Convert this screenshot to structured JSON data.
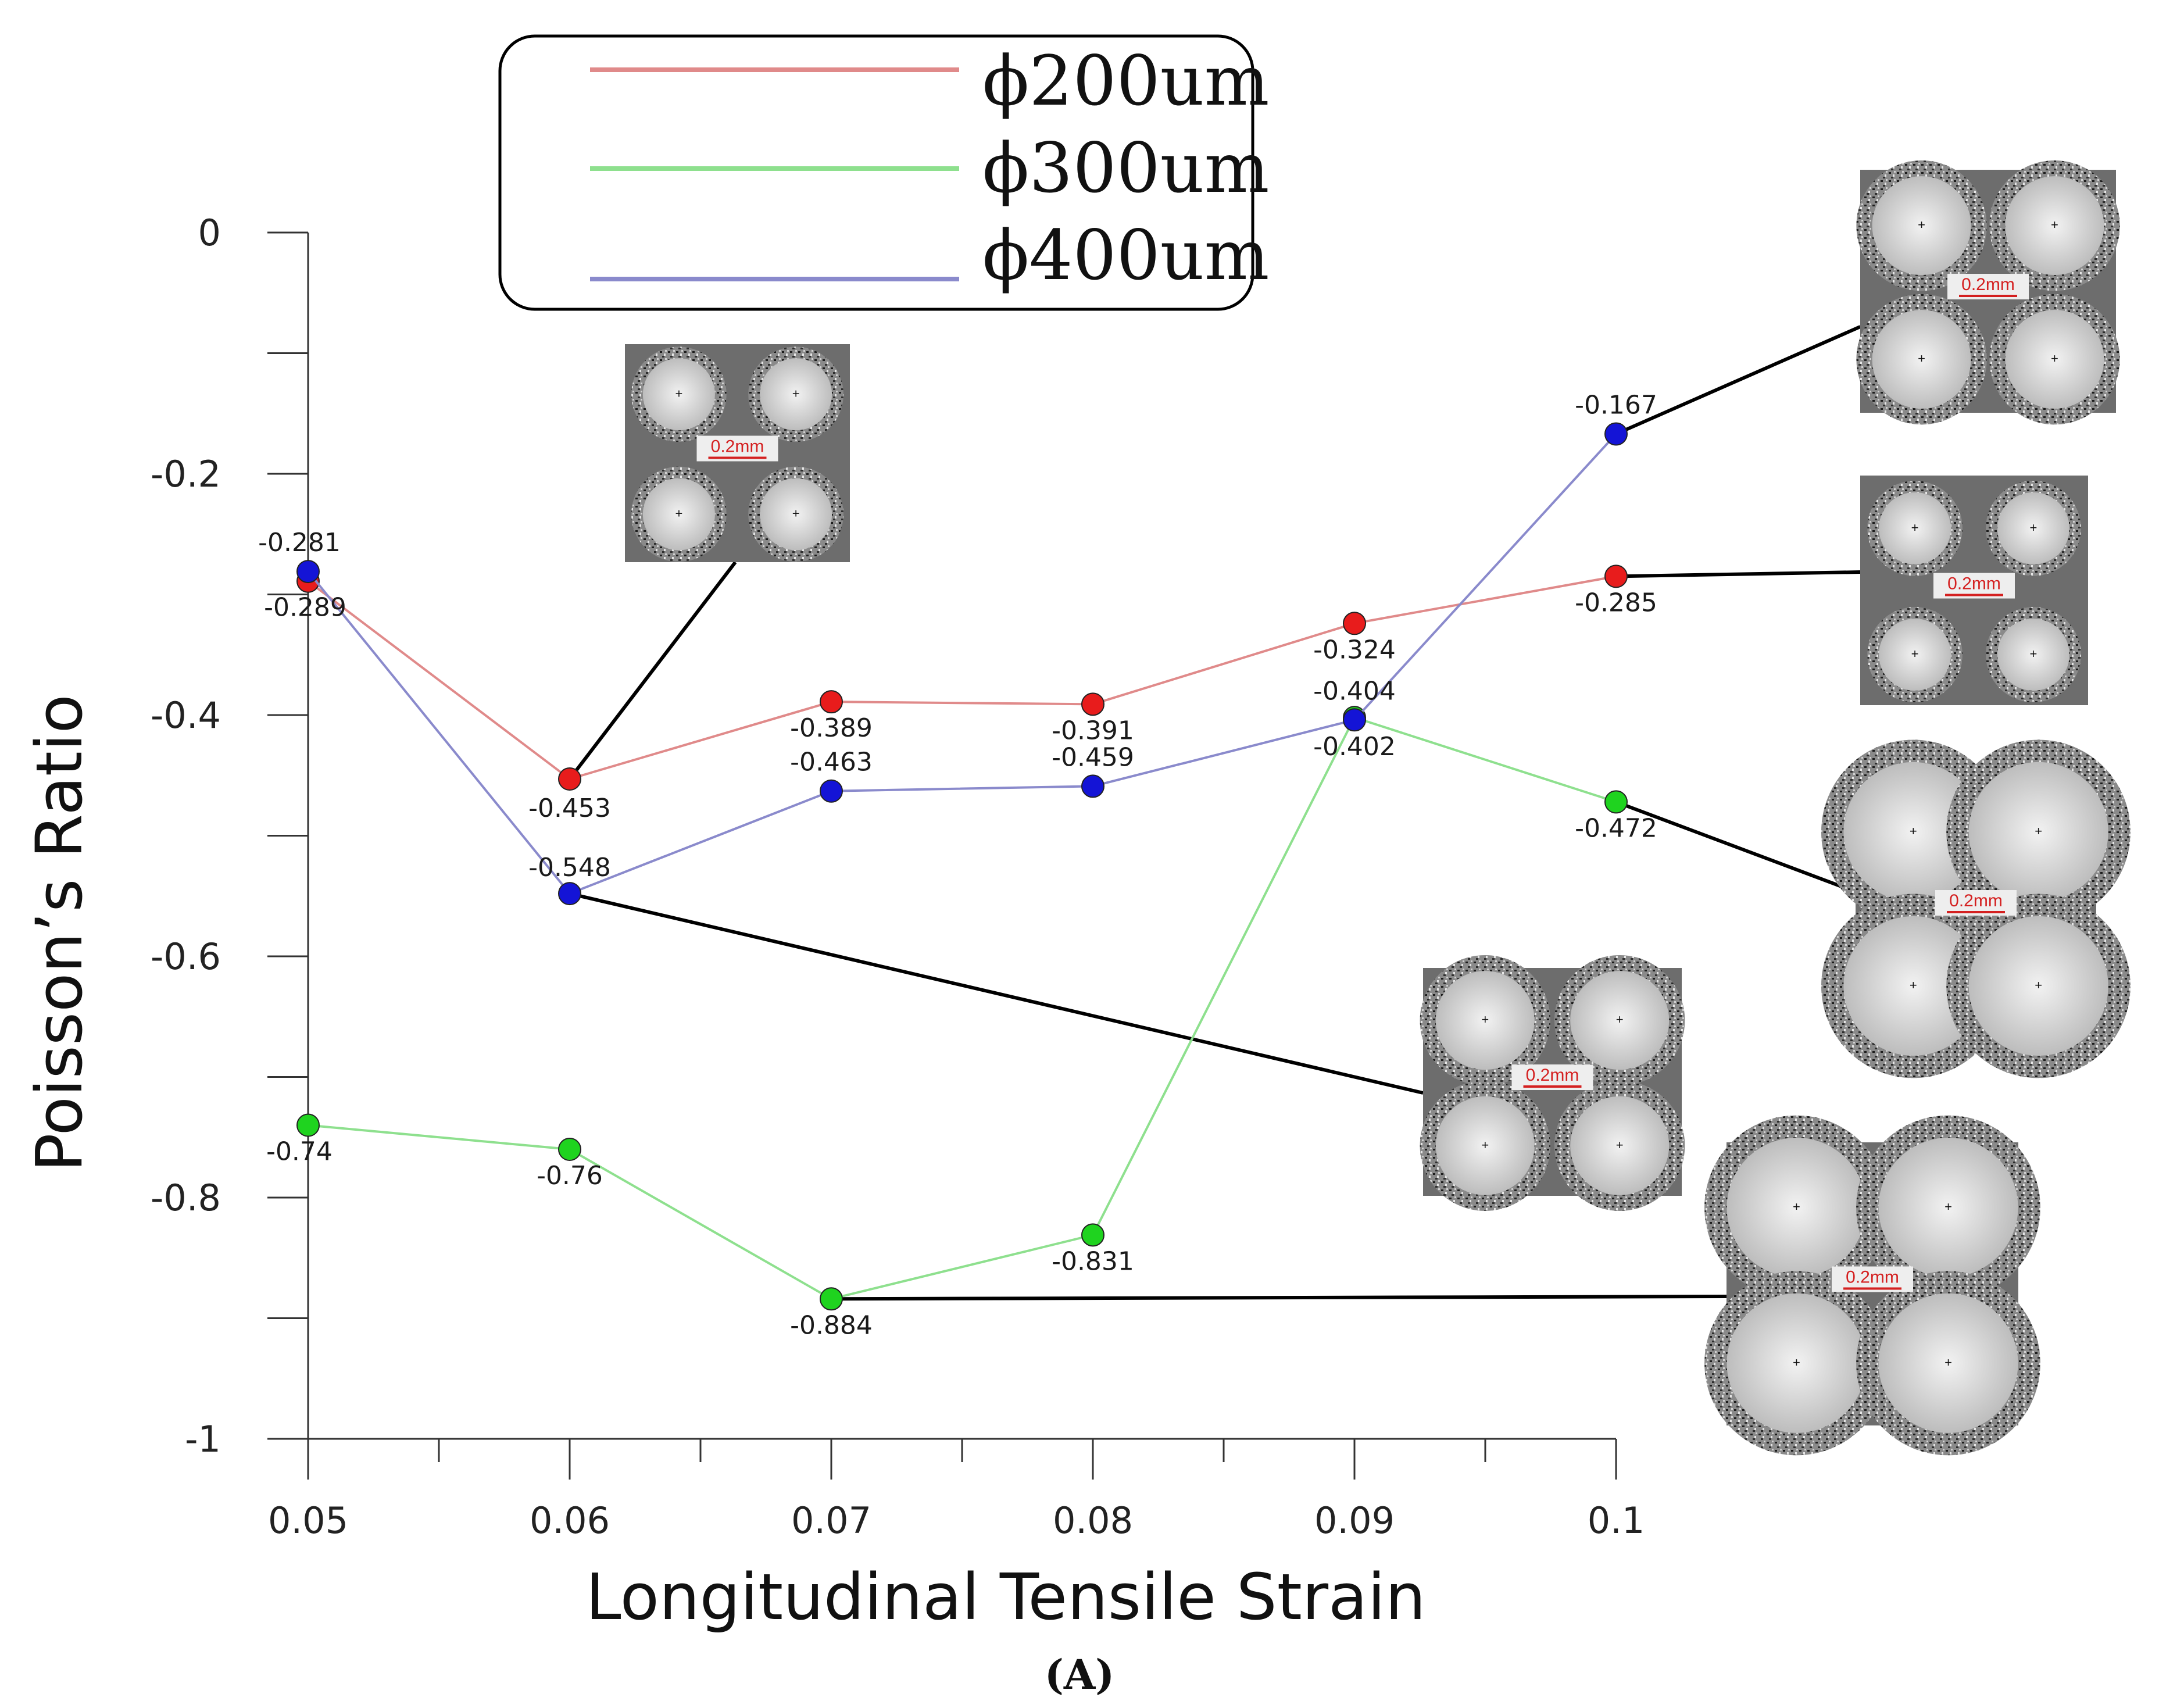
{
  "chart_data": {
    "type": "line",
    "title": "",
    "xlabel": "Longitudinal Tensile Strain",
    "ylabel": "Poisson’s Ratio",
    "panel_label": "(A)",
    "x": [
      0.05,
      0.06,
      0.07,
      0.08,
      0.09,
      0.1
    ],
    "x_tick_labels": [
      "0.05",
      "0.06",
      "0.07",
      "0.08",
      "0.09",
      "0.1"
    ],
    "y_tick_labels": [
      "0",
      "-0.2",
      "-0.4",
      "-0.6",
      "-0.8",
      "-1"
    ],
    "xlim": [
      0.05,
      0.1
    ],
    "ylim": [
      -1,
      0
    ],
    "grid": false,
    "legend_position": "top-center",
    "series": [
      {
        "name": "ϕ200um",
        "line_color": "#e08a8a",
        "marker_color": "#e81c1c",
        "values": [
          -0.289,
          -0.453,
          -0.389,
          -0.391,
          -0.324,
          -0.285
        ],
        "labels": [
          "-0.289",
          "-0.453",
          "-0.389",
          "-0.391",
          "-0.324",
          "-0.285"
        ]
      },
      {
        "name": "ϕ300um",
        "line_color": "#8ee08e",
        "marker_color": "#1fd31f",
        "values": [
          -0.74,
          -0.76,
          -0.884,
          -0.831,
          -0.402,
          -0.472
        ],
        "labels": [
          "-0.74",
          "-0.76",
          "-0.884",
          "-0.831",
          "-0.402",
          "-0.472"
        ]
      },
      {
        "name": "ϕ400um",
        "line_color": "#8a8acc",
        "marker_color": "#1414d6",
        "values": [
          -0.281,
          -0.548,
          -0.463,
          -0.459,
          -0.404,
          -0.167
        ],
        "labels": [
          "-0.281",
          "-0.548",
          "-0.463",
          "-0.459",
          "-0.404",
          "-0.167"
        ]
      }
    ],
    "micrographs": [
      {
        "name": "micrograph-phi200-0.06",
        "scale_label": "0.2mm",
        "pore_size": "small",
        "series": 0,
        "point": 1
      },
      {
        "name": "micrograph-phi400-0.1",
        "scale_label": "0.2mm",
        "pore_size": "medium",
        "series": 2,
        "point": 5
      },
      {
        "name": "micrograph-phi200-0.1",
        "scale_label": "0.2mm",
        "pore_size": "small",
        "series": 0,
        "point": 5
      },
      {
        "name": "micrograph-phi300-0.1",
        "scale_label": "0.2mm",
        "pore_size": "large",
        "series": 1,
        "point": 5
      },
      {
        "name": "micrograph-phi400-0.06",
        "scale_label": "0.2mm",
        "pore_size": "medium",
        "series": 2,
        "point": 1
      },
      {
        "name": "micrograph-phi300-0.07",
        "scale_label": "0.2mm",
        "pore_size": "large",
        "series": 1,
        "point": 2
      }
    ]
  }
}
